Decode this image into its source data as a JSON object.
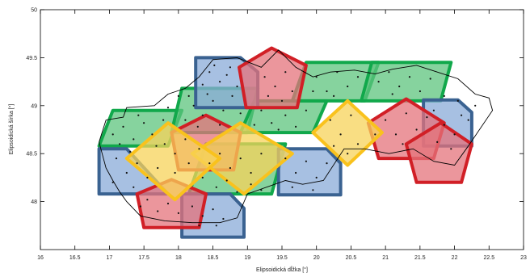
{
  "chart_data": {
    "type": "scatter",
    "xlabel": "Elipsoidická dĺžka [°]",
    "ylabel": "Elipsoidická šírka [°]",
    "xlim": [
      16,
      23
    ],
    "ylim": [
      47.5,
      50
    ],
    "xticks": [
      "16",
      "16.5",
      "17",
      "17.5",
      "18",
      "18.5",
      "19",
      "19.5",
      "20",
      "20.5",
      "21",
      "21.5",
      "22",
      "22.5",
      "23"
    ],
    "yticks": [
      "48",
      "48.5",
      "49",
      "49.5",
      "50"
    ],
    "grid": false,
    "colors": {
      "blue": "#3a6291",
      "blue_fill": "#8aabd8",
      "red": "#d11f26",
      "red_fill": "#e4737b",
      "green": "#11a84b",
      "green_fill": "#5dc47e",
      "yellow": "#f9c21d",
      "yellow_fill": "#f7d35a",
      "border": "#000000"
    },
    "regions": [
      {
        "color": "green",
        "points": [
          [
            16.85,
            48.58
          ],
          [
            17.05,
            48.95
          ],
          [
            18.05,
            48.95
          ],
          [
            17.85,
            48.58
          ]
        ]
      },
      {
        "color": "green",
        "points": [
          [
            17.9,
            48.72
          ],
          [
            18.05,
            49.18
          ],
          [
            19.15,
            49.18
          ],
          [
            19.0,
            48.72
          ]
        ]
      },
      {
        "color": "green",
        "points": [
          [
            18.9,
            48.72
          ],
          [
            19.1,
            49.05
          ],
          [
            20.15,
            49.05
          ],
          [
            19.95,
            48.72
          ]
        ]
      },
      {
        "color": "green",
        "points": [
          [
            19.65,
            49.05
          ],
          [
            19.85,
            49.45
          ],
          [
            20.9,
            49.45
          ],
          [
            20.7,
            49.05
          ]
        ]
      },
      {
        "color": "green",
        "points": [
          [
            20.65,
            49.05
          ],
          [
            20.8,
            49.45
          ],
          [
            21.95,
            49.45
          ],
          [
            21.8,
            49.05
          ]
        ]
      },
      {
        "color": "green",
        "points": [
          [
            18.15,
            48.08
          ],
          [
            18.4,
            48.6
          ],
          [
            19.55,
            48.6
          ],
          [
            19.35,
            48.08
          ]
        ]
      },
      {
        "color": "blue",
        "points": [
          [
            18.25,
            49.5
          ],
          [
            18.9,
            49.5
          ],
          [
            19.15,
            49.35
          ],
          [
            19.15,
            48.98
          ],
          [
            18.25,
            48.98
          ]
        ]
      },
      {
        "color": "blue",
        "points": [
          [
            16.85,
            48.55
          ],
          [
            17.25,
            48.55
          ],
          [
            17.85,
            48.08
          ],
          [
            16.85,
            48.08
          ]
        ]
      },
      {
        "color": "blue",
        "points": [
          [
            18.05,
            48.08
          ],
          [
            18.75,
            48.08
          ],
          [
            18.95,
            47.93
          ],
          [
            18.95,
            47.63
          ],
          [
            18.05,
            47.63
          ]
        ]
      },
      {
        "color": "blue",
        "points": [
          [
            19.45,
            48.55
          ],
          [
            20.15,
            48.55
          ],
          [
            20.35,
            48.4
          ],
          [
            20.35,
            48.07
          ],
          [
            19.45,
            48.07
          ]
        ]
      },
      {
        "color": "blue",
        "points": [
          [
            21.55,
            49.06
          ],
          [
            22.05,
            49.06
          ],
          [
            22.25,
            48.93
          ],
          [
            22.25,
            48.58
          ],
          [
            21.55,
            48.58
          ]
        ]
      },
      {
        "color": "red",
        "points": [
          [
            19.35,
            49.6
          ],
          [
            19.85,
            49.42
          ],
          [
            19.72,
            48.98
          ],
          [
            18.98,
            48.98
          ],
          [
            18.88,
            49.4
          ]
        ]
      },
      {
        "color": "red",
        "points": [
          [
            18.4,
            48.9
          ],
          [
            18.9,
            48.72
          ],
          [
            18.8,
            48.33
          ],
          [
            18.0,
            48.33
          ],
          [
            17.9,
            48.72
          ]
        ]
      },
      {
        "color": "red",
        "points": [
          [
            17.9,
            48.23
          ],
          [
            18.4,
            48.08
          ],
          [
            18.3,
            47.73
          ],
          [
            17.5,
            47.73
          ],
          [
            17.4,
            48.08
          ]
        ]
      },
      {
        "color": "red",
        "points": [
          [
            21.3,
            49.07
          ],
          [
            21.85,
            48.82
          ],
          [
            21.7,
            48.45
          ],
          [
            20.9,
            48.45
          ],
          [
            20.75,
            48.82
          ]
        ]
      },
      {
        "color": "red",
        "points": [
          [
            21.8,
            48.82
          ],
          [
            22.25,
            48.6
          ],
          [
            22.1,
            48.2
          ],
          [
            21.45,
            48.2
          ],
          [
            21.3,
            48.6
          ]
        ]
      },
      {
        "color": "yellow",
        "points": [
          [
            20.45,
            49.05
          ],
          [
            20.95,
            48.72
          ],
          [
            20.45,
            48.38
          ],
          [
            19.95,
            48.72
          ]
        ]
      },
      {
        "color": "yellow",
        "points": [
          [
            18.9,
            48.82
          ],
          [
            19.65,
            48.5
          ],
          [
            18.95,
            48.08
          ],
          [
            18.2,
            48.5
          ]
        ]
      },
      {
        "color": "yellow",
        "points": [
          [
            17.85,
            48.82
          ],
          [
            18.6,
            48.45
          ],
          [
            17.95,
            48.02
          ],
          [
            17.25,
            48.45
          ]
        ]
      }
    ],
    "border": [
      [
        16.85,
        48.62
      ],
      [
        16.95,
        48.85
      ],
      [
        17.2,
        48.88
      ],
      [
        17.25,
        48.98
      ],
      [
        17.65,
        49.0
      ],
      [
        17.85,
        49.12
      ],
      [
        18.1,
        49.18
      ],
      [
        18.3,
        49.3
      ],
      [
        18.5,
        49.48
      ],
      [
        18.85,
        49.5
      ],
      [
        19.2,
        49.4
      ],
      [
        19.45,
        49.58
      ],
      [
        19.7,
        49.4
      ],
      [
        19.95,
        49.3
      ],
      [
        20.2,
        49.35
      ],
      [
        20.55,
        49.37
      ],
      [
        20.85,
        49.33
      ],
      [
        21.1,
        49.38
      ],
      [
        21.45,
        49.42
      ],
      [
        21.75,
        49.35
      ],
      [
        22.05,
        49.28
      ],
      [
        22.3,
        49.12
      ],
      [
        22.5,
        49.08
      ],
      [
        22.55,
        48.95
      ],
      [
        22.2,
        48.58
      ],
      [
        22.0,
        48.38
      ],
      [
        21.7,
        48.42
      ],
      [
        21.4,
        48.55
      ],
      [
        21.05,
        48.5
      ],
      [
        20.7,
        48.55
      ],
      [
        20.4,
        48.55
      ],
      [
        20.1,
        48.22
      ],
      [
        19.8,
        48.18
      ],
      [
        19.55,
        48.22
      ],
      [
        19.0,
        48.08
      ],
      [
        18.85,
        47.83
      ],
      [
        18.6,
        47.78
      ],
      [
        18.2,
        47.78
      ],
      [
        17.8,
        47.8
      ],
      [
        17.45,
        47.85
      ],
      [
        17.25,
        48.0
      ],
      [
        17.15,
        48.1
      ],
      [
        17.05,
        48.22
      ],
      [
        16.95,
        48.35
      ],
      [
        16.85,
        48.62
      ]
    ],
    "points": [
      [
        17.05,
        48.7
      ],
      [
        17.2,
        48.78
      ],
      [
        17.35,
        48.65
      ],
      [
        17.5,
        48.82
      ],
      [
        17.62,
        48.7
      ],
      [
        17.78,
        48.85
      ],
      [
        17.15,
        48.6
      ],
      [
        17.42,
        48.9
      ],
      [
        17.3,
        48.52
      ],
      [
        17.68,
        48.58
      ],
      [
        18.1,
        48.85
      ],
      [
        18.22,
        49.0
      ],
      [
        18.35,
        48.9
      ],
      [
        18.5,
        49.05
      ],
      [
        18.65,
        48.95
      ],
      [
        18.78,
        49.1
      ],
      [
        18.9,
        48.92
      ],
      [
        18.42,
        49.12
      ],
      [
        18.28,
        48.78
      ],
      [
        18.6,
        48.8
      ],
      [
        18.45,
        49.35
      ],
      [
        18.6,
        49.25
      ],
      [
        18.75,
        49.4
      ],
      [
        18.85,
        49.2
      ],
      [
        18.35,
        49.22
      ],
      [
        18.7,
        49.32
      ],
      [
        18.52,
        49.42
      ],
      [
        19.25,
        49.3
      ],
      [
        19.4,
        49.2
      ],
      [
        19.55,
        49.35
      ],
      [
        19.65,
        49.15
      ],
      [
        19.3,
        49.1
      ],
      [
        19.5,
        49.05
      ],
      [
        19.2,
        48.95
      ],
      [
        19.35,
        48.82
      ],
      [
        19.55,
        48.9
      ],
      [
        19.7,
        48.78
      ],
      [
        19.85,
        48.95
      ],
      [
        19.45,
        48.75
      ],
      [
        19.1,
        48.8
      ],
      [
        20.0,
        49.3
      ],
      [
        20.15,
        49.15
      ],
      [
        20.3,
        49.35
      ],
      [
        20.45,
        49.2
      ],
      [
        20.6,
        49.3
      ],
      [
        20.25,
        49.1
      ],
      [
        19.95,
        49.15
      ],
      [
        20.9,
        49.25
      ],
      [
        21.05,
        49.35
      ],
      [
        21.2,
        49.2
      ],
      [
        21.35,
        49.3
      ],
      [
        21.5,
        49.15
      ],
      [
        21.65,
        49.28
      ],
      [
        21.1,
        49.12
      ],
      [
        21.0,
        48.85
      ],
      [
        21.15,
        48.7
      ],
      [
        21.3,
        48.92
      ],
      [
        21.45,
        48.75
      ],
      [
        21.6,
        48.88
      ],
      [
        20.85,
        48.7
      ],
      [
        21.25,
        48.6
      ],
      [
        21.7,
        48.95
      ],
      [
        21.85,
        48.8
      ],
      [
        22.0,
        48.7
      ],
      [
        22.1,
        48.9
      ],
      [
        21.95,
        48.55
      ],
      [
        21.75,
        48.62
      ],
      [
        20.2,
        48.85
      ],
      [
        20.35,
        48.7
      ],
      [
        20.5,
        48.9
      ],
      [
        20.6,
        48.6
      ],
      [
        20.25,
        48.58
      ],
      [
        20.45,
        48.5
      ],
      [
        19.55,
        48.45
      ],
      [
        19.7,
        48.3
      ],
      [
        19.85,
        48.42
      ],
      [
        20.0,
        48.25
      ],
      [
        20.15,
        48.4
      ],
      [
        19.65,
        48.15
      ],
      [
        19.95,
        48.12
      ],
      [
        18.3,
        48.55
      ],
      [
        18.45,
        48.4
      ],
      [
        18.6,
        48.5
      ],
      [
        18.75,
        48.35
      ],
      [
        18.9,
        48.45
      ],
      [
        19.05,
        48.3
      ],
      [
        19.2,
        48.5
      ],
      [
        18.35,
        48.25
      ],
      [
        18.55,
        48.15
      ],
      [
        18.7,
        48.22
      ],
      [
        18.85,
        48.1
      ],
      [
        19.05,
        48.18
      ],
      [
        19.2,
        48.12
      ],
      [
        17.1,
        48.45
      ],
      [
        17.25,
        48.3
      ],
      [
        17.4,
        48.4
      ],
      [
        17.55,
        48.25
      ],
      [
        17.7,
        48.35
      ],
      [
        17.05,
        48.2
      ],
      [
        17.35,
        48.15
      ],
      [
        17.55,
        48.02
      ],
      [
        17.7,
        47.9
      ],
      [
        17.85,
        47.98
      ],
      [
        18.0,
        47.88
      ],
      [
        17.45,
        47.95
      ],
      [
        18.2,
        47.95
      ],
      [
        18.35,
        47.85
      ],
      [
        18.5,
        47.92
      ],
      [
        18.65,
        47.82
      ],
      [
        18.3,
        47.75
      ],
      [
        18.55,
        47.75
      ],
      [
        17.8,
        48.6
      ],
      [
        17.95,
        48.5
      ],
      [
        18.1,
        48.65
      ],
      [
        18.15,
        48.4
      ],
      [
        17.95,
        48.3
      ],
      [
        18.0,
        49.1
      ],
      [
        17.85,
        48.98
      ],
      [
        18.15,
        49.1
      ],
      [
        22.2,
        48.85
      ],
      [
        22.3,
        49.0
      ],
      [
        22.05,
        49.05
      ],
      [
        21.85,
        49.1
      ]
    ]
  }
}
